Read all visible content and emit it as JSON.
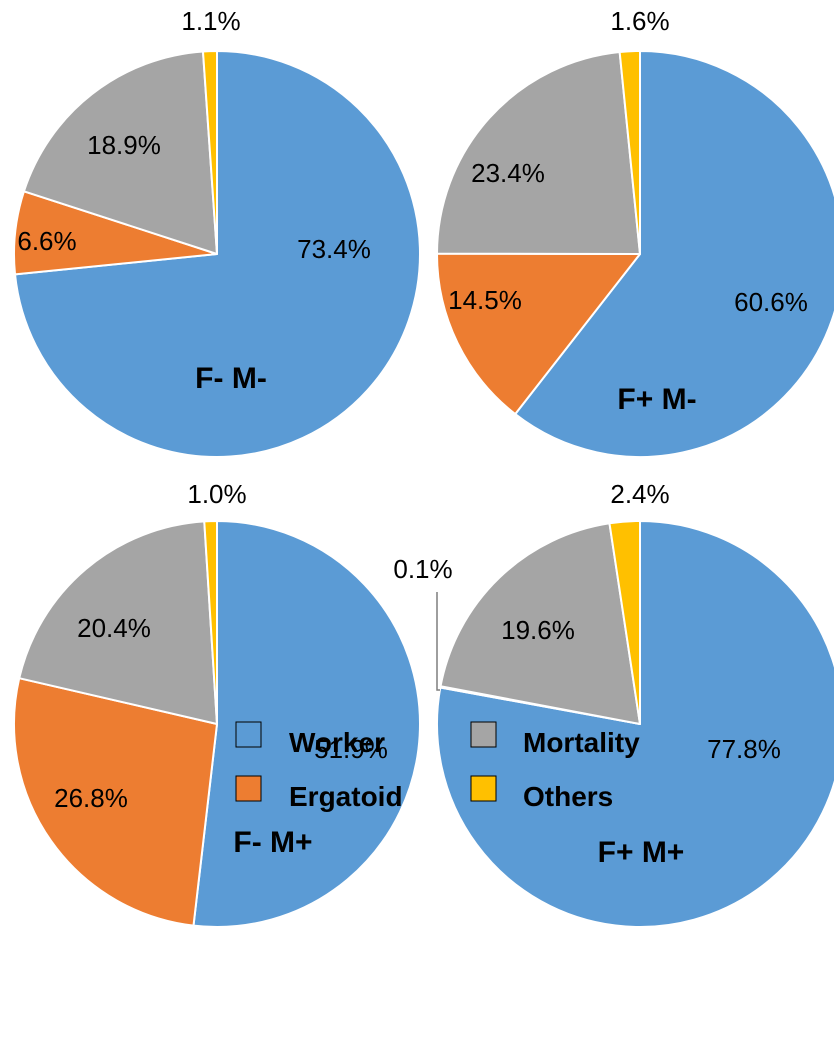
{
  "chart_data": [
    {
      "type": "pie",
      "panel_label": "F- M-",
      "series": [
        {
          "name": "Worker",
          "value": 73.4,
          "label": "73.4%"
        },
        {
          "name": "Ergatoid",
          "value": 6.6,
          "label": "6.6%"
        },
        {
          "name": "Mortality",
          "value": 18.9,
          "label": "18.9%"
        },
        {
          "name": "Others",
          "value": 1.1,
          "label": "1.1%"
        }
      ]
    },
    {
      "type": "pie",
      "panel_label": "F+ M-",
      "series": [
        {
          "name": "Worker",
          "value": 60.6,
          "label": "60.6%"
        },
        {
          "name": "Ergatoid",
          "value": 14.5,
          "label": "14.5%"
        },
        {
          "name": "Mortality",
          "value": 23.4,
          "label": "23.4%"
        },
        {
          "name": "Others",
          "value": 1.6,
          "label": "1.6%"
        }
      ]
    },
    {
      "type": "pie",
      "panel_label": "F- M+",
      "series": [
        {
          "name": "Worker",
          "value": 51.9,
          "label": "51.9%"
        },
        {
          "name": "Ergatoid",
          "value": 26.8,
          "label": "26.8%"
        },
        {
          "name": "Mortality",
          "value": 20.4,
          "label": "20.4%"
        },
        {
          "name": "Others",
          "value": 1.0,
          "label": "1.0%"
        }
      ]
    },
    {
      "type": "pie",
      "panel_label": "F+ M+",
      "series": [
        {
          "name": "Worker",
          "value": 77.8,
          "label": "77.8%"
        },
        {
          "name": "Ergatoid",
          "value": 0.1,
          "label": "0.1%"
        },
        {
          "name": "Mortality",
          "value": 19.6,
          "label": "19.6%"
        },
        {
          "name": "Others",
          "value": 2.4,
          "label": "2.4%"
        }
      ]
    }
  ],
  "legend": {
    "placement": "bottom-center",
    "items": [
      {
        "name": "Worker",
        "color": "#5B9BD5"
      },
      {
        "name": "Mortality",
        "color": "#A5A5A5"
      },
      {
        "name": "Ergatoid",
        "color": "#ED7D31"
      },
      {
        "name": "Others",
        "color": "#FFC000"
      }
    ]
  },
  "colors": {
    "Worker": "#5B9BD5",
    "Ergatoid": "#ED7D31",
    "Mortality": "#A5A5A5",
    "Others": "#FFC000",
    "slice_border": "#FFFFFF"
  }
}
